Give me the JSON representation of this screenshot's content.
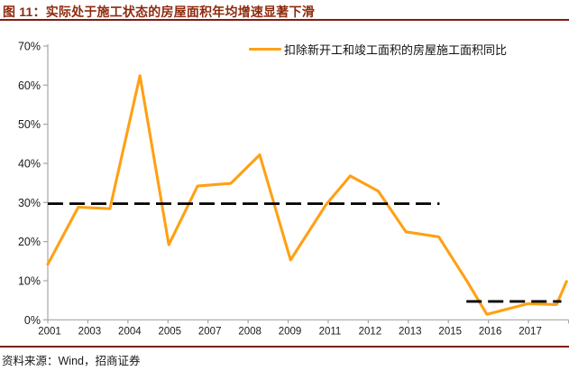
{
  "header": {
    "figure_label": "图 11：",
    "title": "实际处于施工状态的房屋面积年均增速显著下滑"
  },
  "colors": {
    "title_text": "#8F2B0F",
    "rule": "#7F1D12",
    "series_orange": "#FFA014",
    "reference_black": "#000000",
    "axis_gray": "#A6A6A6",
    "tick_label": "#1a1a1a"
  },
  "chart_data": {
    "type": "line",
    "legend": {
      "label": "扣除新开工和竣工面积的房屋施工面积同比",
      "position": "top"
    },
    "ylim": [
      0,
      70
    ],
    "y_tick_step": 10,
    "y_tick_labels": [
      "70%",
      "60%",
      "50%",
      "40%",
      "30%",
      "20%",
      "10%",
      "0%"
    ],
    "x_tick_labels": [
      "2001",
      "2003",
      "2004",
      "2005",
      "2007",
      "2008",
      "2009",
      "2011",
      "2012",
      "2013",
      "2015",
      "2016",
      "2017"
    ],
    "x_axis_tick_intervals": 13,
    "grid": false,
    "series": [
      {
        "name": "扣除新开工和竣工面积的房屋施工面积同比",
        "color": "#FFA014",
        "unit": "%",
        "points": [
          {
            "x": 0.0,
            "y": 14.2
          },
          {
            "x": 0.76,
            "y": 28.8
          },
          {
            "x": 1.55,
            "y": 28.4
          },
          {
            "x": 2.3,
            "y": 62.4
          },
          {
            "x": 3.02,
            "y": 19.2
          },
          {
            "x": 3.74,
            "y": 34.2
          },
          {
            "x": 4.57,
            "y": 34.9
          },
          {
            "x": 5.29,
            "y": 42.2
          },
          {
            "x": 6.06,
            "y": 15.3
          },
          {
            "x": 6.95,
            "y": 29.5
          },
          {
            "x": 7.55,
            "y": 36.8
          },
          {
            "x": 8.25,
            "y": 32.9
          },
          {
            "x": 8.94,
            "y": 22.5
          },
          {
            "x": 9.76,
            "y": 21.2
          },
          {
            "x": 10.47,
            "y": 9.8
          },
          {
            "x": 10.96,
            "y": 1.4
          },
          {
            "x": 11.98,
            "y": 4.1
          },
          {
            "x": 12.7,
            "y": 3.9
          },
          {
            "x": 12.95,
            "y": 9.8
          }
        ]
      }
    ],
    "reference_lines": [
      {
        "value": 29.7,
        "x_from": 0.0,
        "x_to": 9.78,
        "style": "dashed",
        "color": "#000000"
      },
      {
        "value": 4.7,
        "x_from": 10.45,
        "x_to": 12.82,
        "style": "dashed",
        "color": "#000000"
      }
    ]
  },
  "footer": {
    "source": "资料来源：Wind，招商证券"
  }
}
